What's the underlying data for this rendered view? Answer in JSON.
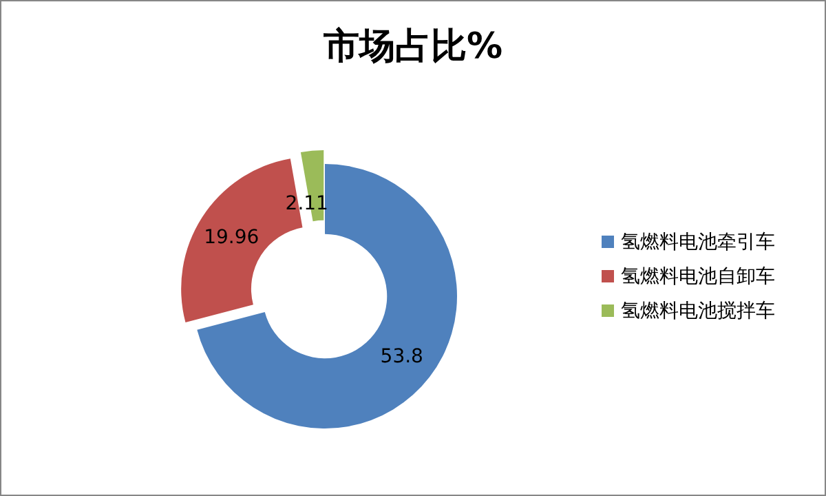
{
  "chart_data": {
    "type": "donut",
    "title": "市场占比%",
    "categories": [
      "氢燃料电池牵引车",
      "氢燃料电池自卸车",
      "氢燃料电池搅拌车"
    ],
    "values": [
      53.8,
      19.96,
      2.11
    ],
    "colors": [
      "#4f81bd",
      "#c0504d",
      "#9bbb59"
    ],
    "data_labels": true,
    "legend": "right"
  }
}
